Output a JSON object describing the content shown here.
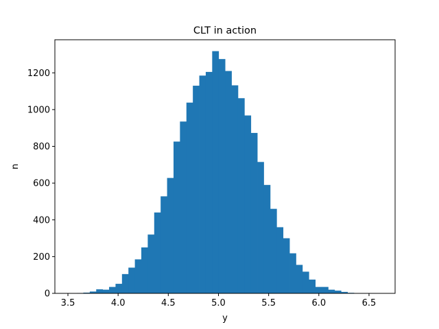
{
  "chart_data": {
    "type": "bar",
    "title": "CLT in action",
    "xlabel": "y",
    "ylabel": "n",
    "xlim": [
      3.37,
      6.76
    ],
    "ylim": [
      0,
      1380
    ],
    "xticks": [
      3.5,
      4.0,
      4.5,
      5.0,
      5.5,
      6.0,
      6.5
    ],
    "xtick_labels": [
      "3.5",
      "4.0",
      "4.5",
      "5.0",
      "5.5",
      "6.0",
      "6.5"
    ],
    "yticks": [
      0,
      200,
      400,
      600,
      800,
      1000,
      1200
    ],
    "ytick_labels": [
      "0",
      "200",
      "400",
      "600",
      "800",
      "1000",
      "1200"
    ],
    "bar_color": "#1f77b4",
    "grid": false,
    "bins": {
      "start": 3.525,
      "width": 0.0642,
      "counts": [
        1,
        2,
        4,
        10,
        22,
        20,
        35,
        52,
        105,
        140,
        185,
        250,
        320,
        440,
        528,
        628,
        826,
        935,
        1038,
        1130,
        1185,
        1205,
        1318,
        1275,
        1210,
        1132,
        1062,
        968,
        873,
        715,
        590,
        460,
        360,
        300,
        218,
        155,
        118,
        75,
        35,
        35,
        20,
        15,
        8,
        3,
        1,
        0,
        1,
        1
      ]
    }
  }
}
